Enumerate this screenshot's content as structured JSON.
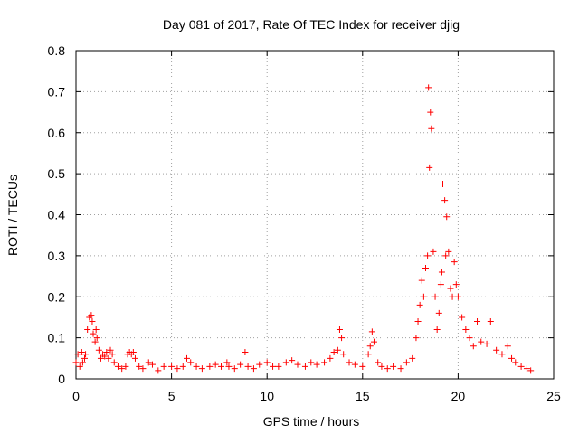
{
  "chart_data": {
    "type": "scatter",
    "title": "Day 081 of 2017, Rate Of TEC Index for receiver djig",
    "xlabel": "GPS time / hours",
    "ylabel": "ROTI / TECUs",
    "xlim": [
      0,
      25
    ],
    "ylim": [
      0,
      0.8
    ],
    "xticks": [
      0,
      5,
      10,
      15,
      20,
      25
    ],
    "xtick_labels": [
      "0",
      "5",
      "10",
      "15",
      "20",
      "25"
    ],
    "yticks": [
      0,
      0.1,
      0.2,
      0.3,
      0.4,
      0.5,
      0.6,
      0.7,
      0.8
    ],
    "ytick_labels": [
      "0",
      "0.1",
      "0.2",
      "0.3",
      "0.4",
      "0.5",
      "0.6",
      "0.7",
      "0.8"
    ],
    "grid": true,
    "marker": "+",
    "series_color": "#ff0000",
    "series": [
      {
        "name": "ROTI",
        "x": [
          0.0,
          0.1,
          0.2,
          0.3,
          0.35,
          0.45,
          0.5,
          0.6,
          0.7,
          0.8,
          0.85,
          0.9,
          1.0,
          1.05,
          1.1,
          1.2,
          1.3,
          1.4,
          1.5,
          1.6,
          1.7,
          1.8,
          1.9,
          2.0,
          2.2,
          2.4,
          2.6,
          2.7,
          2.8,
          2.9,
          3.0,
          3.1,
          3.3,
          3.5,
          3.8,
          4.0,
          4.3,
          4.6,
          5.0,
          5.3,
          5.6,
          5.8,
          6.0,
          6.3,
          6.6,
          7.0,
          7.3,
          7.6,
          7.9,
          8.0,
          8.3,
          8.6,
          8.85,
          9.0,
          9.3,
          9.6,
          10.0,
          10.3,
          10.6,
          11.0,
          11.3,
          11.6,
          12.0,
          12.3,
          12.6,
          13.0,
          13.3,
          13.5,
          13.7,
          13.8,
          13.9,
          14.0,
          14.3,
          14.6,
          15.0,
          15.3,
          15.4,
          15.5,
          15.6,
          15.8,
          16.0,
          16.3,
          16.6,
          17.0,
          17.3,
          17.6,
          17.8,
          17.9,
          18.0,
          18.1,
          18.2,
          18.3,
          18.4,
          18.45,
          18.5,
          18.55,
          18.6,
          18.7,
          18.8,
          18.9,
          19.0,
          19.1,
          19.15,
          19.2,
          19.3,
          19.35,
          19.4,
          19.5,
          19.6,
          19.7,
          19.8,
          19.9,
          20.0,
          20.2,
          20.4,
          20.6,
          20.8,
          21.0,
          21.2,
          21.5,
          21.7,
          22.0,
          22.3,
          22.6,
          22.8,
          23.0,
          23.3,
          23.6,
          23.8
        ],
        "y": [
          0.04,
          0.06,
          0.03,
          0.065,
          0.04,
          0.05,
          0.06,
          0.12,
          0.15,
          0.155,
          0.14,
          0.11,
          0.09,
          0.12,
          0.1,
          0.07,
          0.05,
          0.06,
          0.055,
          0.065,
          0.05,
          0.07,
          0.06,
          0.04,
          0.03,
          0.025,
          0.03,
          0.06,
          0.065,
          0.06,
          0.065,
          0.05,
          0.03,
          0.025,
          0.04,
          0.035,
          0.02,
          0.03,
          0.03,
          0.025,
          0.03,
          0.05,
          0.04,
          0.03,
          0.025,
          0.03,
          0.035,
          0.03,
          0.04,
          0.03,
          0.025,
          0.035,
          0.065,
          0.03,
          0.025,
          0.035,
          0.04,
          0.03,
          0.03,
          0.04,
          0.045,
          0.035,
          0.03,
          0.04,
          0.035,
          0.04,
          0.05,
          0.065,
          0.07,
          0.12,
          0.1,
          0.06,
          0.04,
          0.035,
          0.03,
          0.06,
          0.08,
          0.115,
          0.09,
          0.04,
          0.03,
          0.025,
          0.03,
          0.025,
          0.04,
          0.05,
          0.1,
          0.14,
          0.18,
          0.24,
          0.2,
          0.27,
          0.3,
          0.71,
          0.515,
          0.65,
          0.61,
          0.31,
          0.2,
          0.12,
          0.16,
          0.23,
          0.26,
          0.475,
          0.435,
          0.3,
          0.395,
          0.31,
          0.22,
          0.2,
          0.285,
          0.23,
          0.2,
          0.15,
          0.12,
          0.1,
          0.08,
          0.14,
          0.09,
          0.085,
          0.14,
          0.07,
          0.06,
          0.08,
          0.05,
          0.04,
          0.03,
          0.025,
          0.02
        ]
      }
    ]
  }
}
